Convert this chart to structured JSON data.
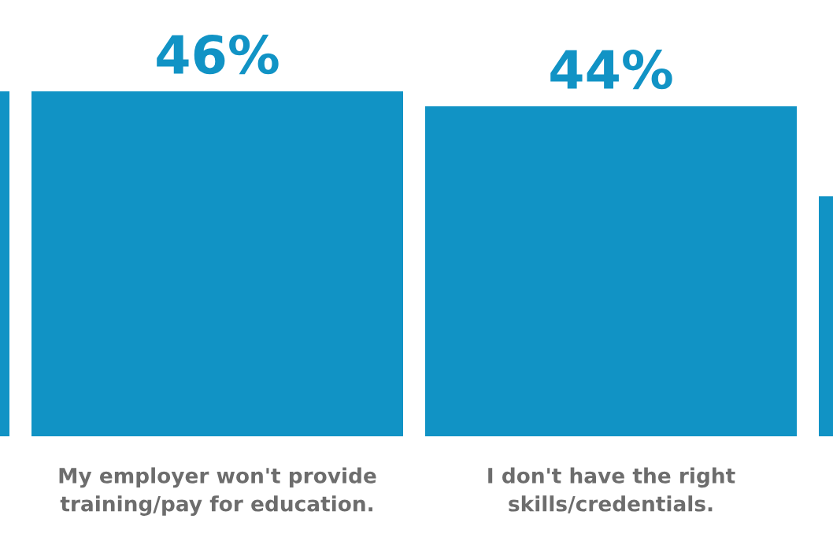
{
  "chart_data": {
    "type": "bar",
    "categories": [
      null,
      "My employer won't provide\ntraining/pay for education.",
      "I don't have the right\nskills/credentials.",
      null
    ],
    "values": [
      46,
      46,
      44,
      32
    ],
    "value_labels": [
      null,
      "46%",
      "44%",
      null
    ],
    "color": "#1193c5"
  }
}
